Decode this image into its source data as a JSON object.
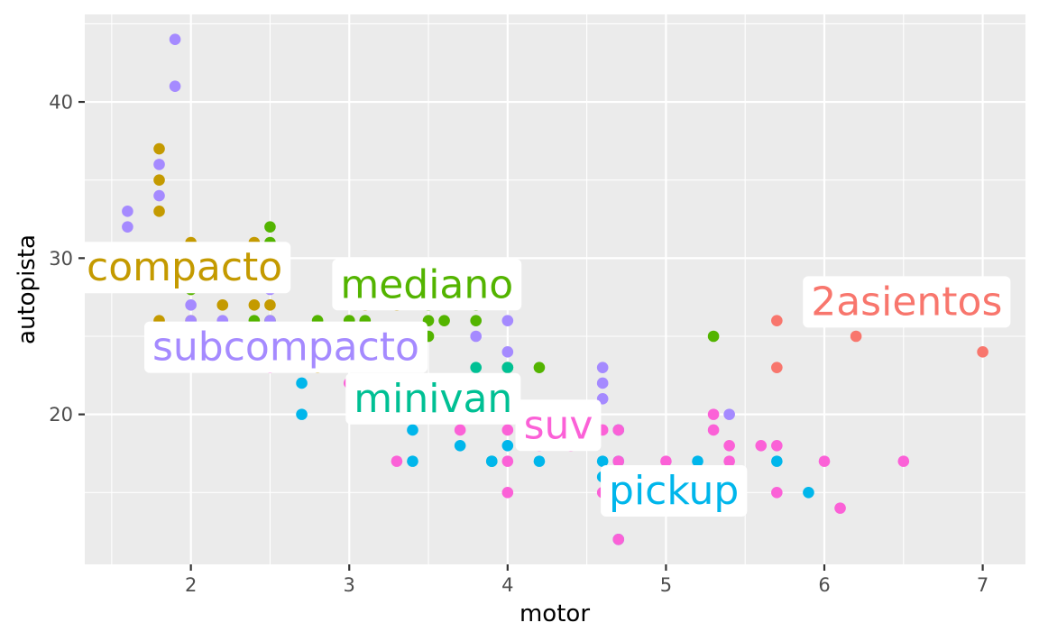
{
  "chart_data": {
    "type": "scatter",
    "xlabel": "motor",
    "ylabel": "autopista",
    "xlim": [
      1.33,
      7.27
    ],
    "ylim": [
      10.4,
      45.6
    ],
    "x_ticks": [
      2,
      3,
      4,
      5,
      6,
      7
    ],
    "x_tick_labels": [
      "2",
      "3",
      "4",
      "5",
      "6",
      "7"
    ],
    "y_ticks": [
      20,
      30,
      40
    ],
    "y_tick_labels": [
      "20",
      "30",
      "40"
    ],
    "grid": true,
    "legend": "none",
    "series": [
      {
        "name": "2asientos",
        "color": "#F8766D",
        "label": {
          "text": "2asientos",
          "x": 6.52,
          "y": 27.2
        },
        "points": [
          [
            5.7,
            26
          ],
          [
            5.7,
            23
          ],
          [
            6.2,
            26
          ],
          [
            6.2,
            25
          ],
          [
            7.0,
            24
          ]
        ]
      },
      {
        "name": "compacto",
        "color": "#C49A00",
        "label": {
          "text": "compacto",
          "x": 1.96,
          "y": 29.4
        },
        "points": [
          [
            1.8,
            37
          ],
          [
            1.8,
            35
          ],
          [
            1.8,
            33
          ],
          [
            1.8,
            30
          ],
          [
            1.8,
            29
          ],
          [
            1.8,
            26
          ],
          [
            1.8,
            25
          ],
          [
            2.0,
            31
          ],
          [
            2.0,
            30
          ],
          [
            2.0,
            29
          ],
          [
            2.0,
            28
          ],
          [
            2.0,
            26
          ],
          [
            2.2,
            29
          ],
          [
            2.2,
            27
          ],
          [
            2.4,
            31
          ],
          [
            2.4,
            30
          ],
          [
            2.4,
            29
          ],
          [
            2.4,
            27
          ],
          [
            2.5,
            29
          ],
          [
            2.5,
            27
          ],
          [
            2.5,
            25
          ],
          [
            2.8,
            25
          ],
          [
            2.8,
            24
          ],
          [
            2.8,
            23
          ],
          [
            3.0,
            26
          ],
          [
            3.1,
            27
          ],
          [
            3.3,
            27
          ]
        ]
      },
      {
        "name": "mediano",
        "color": "#53B400",
        "label": {
          "text": "mediano",
          "x": 3.49,
          "y": 28.3
        },
        "points": [
          [
            1.8,
            29
          ],
          [
            2.0,
            28
          ],
          [
            2.4,
            30
          ],
          [
            2.4,
            26
          ],
          [
            2.4,
            24
          ],
          [
            2.5,
            32
          ],
          [
            2.5,
            31
          ],
          [
            2.5,
            26
          ],
          [
            2.8,
            26
          ],
          [
            3.0,
            26
          ],
          [
            3.0,
            25
          ],
          [
            3.1,
            26
          ],
          [
            3.1,
            25
          ],
          [
            3.3,
            28
          ],
          [
            3.5,
            29
          ],
          [
            3.5,
            28
          ],
          [
            3.5,
            27
          ],
          [
            3.5,
            26
          ],
          [
            3.5,
            25
          ],
          [
            3.6,
            26
          ],
          [
            3.8,
            27
          ],
          [
            3.8,
            26
          ],
          [
            4.0,
            23
          ],
          [
            4.2,
            23
          ],
          [
            5.3,
            25
          ]
        ]
      },
      {
        "name": "minivan",
        "color": "#00C094",
        "label": {
          "text": "minivan",
          "x": 3.53,
          "y": 21.0
        },
        "points": [
          [
            2.4,
            24
          ],
          [
            3.0,
            24
          ],
          [
            3.3,
            24
          ],
          [
            3.3,
            22
          ],
          [
            3.8,
            23
          ],
          [
            3.8,
            22
          ],
          [
            3.8,
            21
          ],
          [
            3.9,
            17
          ],
          [
            4.0,
            23
          ]
        ]
      },
      {
        "name": "pickup",
        "color": "#00B6EB",
        "label": {
          "text": "pickup",
          "x": 5.05,
          "y": 15.1
        },
        "points": [
          [
            2.7,
            22
          ],
          [
            2.7,
            20
          ],
          [
            3.4,
            19
          ],
          [
            3.4,
            17
          ],
          [
            3.7,
            18
          ],
          [
            3.9,
            17
          ],
          [
            4.0,
            20
          ],
          [
            4.0,
            18
          ],
          [
            4.2,
            17
          ],
          [
            4.6,
            17
          ],
          [
            4.6,
            16
          ],
          [
            4.7,
            19
          ],
          [
            4.7,
            17
          ],
          [
            4.7,
            16
          ],
          [
            4.7,
            12
          ],
          [
            5.2,
            17
          ],
          [
            5.2,
            16
          ],
          [
            5.2,
            15
          ],
          [
            5.4,
            15
          ],
          [
            5.7,
            17
          ],
          [
            5.9,
            15
          ]
        ]
      },
      {
        "name": "subcompacto",
        "color": "#A58AFF",
        "label": {
          "text": "subcompacto",
          "x": 2.6,
          "y": 24.3
        },
        "points": [
          [
            1.6,
            33
          ],
          [
            1.6,
            32
          ],
          [
            1.6,
            29
          ],
          [
            1.8,
            36
          ],
          [
            1.8,
            34
          ],
          [
            1.9,
            44
          ],
          [
            1.9,
            41
          ],
          [
            2.0,
            27
          ],
          [
            2.0,
            26
          ],
          [
            2.2,
            26
          ],
          [
            2.5,
            29
          ],
          [
            2.5,
            28
          ],
          [
            2.5,
            26
          ],
          [
            2.5,
            24
          ],
          [
            2.7,
            24
          ],
          [
            3.8,
            25
          ],
          [
            4.0,
            26
          ],
          [
            4.0,
            24
          ],
          [
            4.6,
            23
          ],
          [
            4.6,
            22
          ],
          [
            4.6,
            21
          ],
          [
            5.4,
            20
          ]
        ]
      },
      {
        "name": "suv",
        "color": "#FB61D7",
        "label": {
          "text": "suv",
          "x": 4.32,
          "y": 19.3
        },
        "points": [
          [
            2.5,
            24
          ],
          [
            2.5,
            23
          ],
          [
            3.0,
            22
          ],
          [
            3.3,
            17
          ],
          [
            3.7,
            19
          ],
          [
            4.0,
            19
          ],
          [
            4.0,
            17
          ],
          [
            4.0,
            15
          ],
          [
            4.2,
            18
          ],
          [
            4.4,
            18
          ],
          [
            4.6,
            19
          ],
          [
            4.6,
            15
          ],
          [
            4.7,
            19
          ],
          [
            4.7,
            17
          ],
          [
            4.7,
            15
          ],
          [
            4.7,
            12
          ],
          [
            5.0,
            17
          ],
          [
            5.3,
            20
          ],
          [
            5.3,
            19
          ],
          [
            5.3,
            15
          ],
          [
            5.3,
            14
          ],
          [
            5.4,
            18
          ],
          [
            5.4,
            17
          ],
          [
            5.4,
            16
          ],
          [
            5.6,
            18
          ],
          [
            5.7,
            18
          ],
          [
            5.7,
            15
          ],
          [
            6.0,
            17
          ],
          [
            6.1,
            14
          ],
          [
            6.5,
            17
          ]
        ]
      }
    ]
  }
}
